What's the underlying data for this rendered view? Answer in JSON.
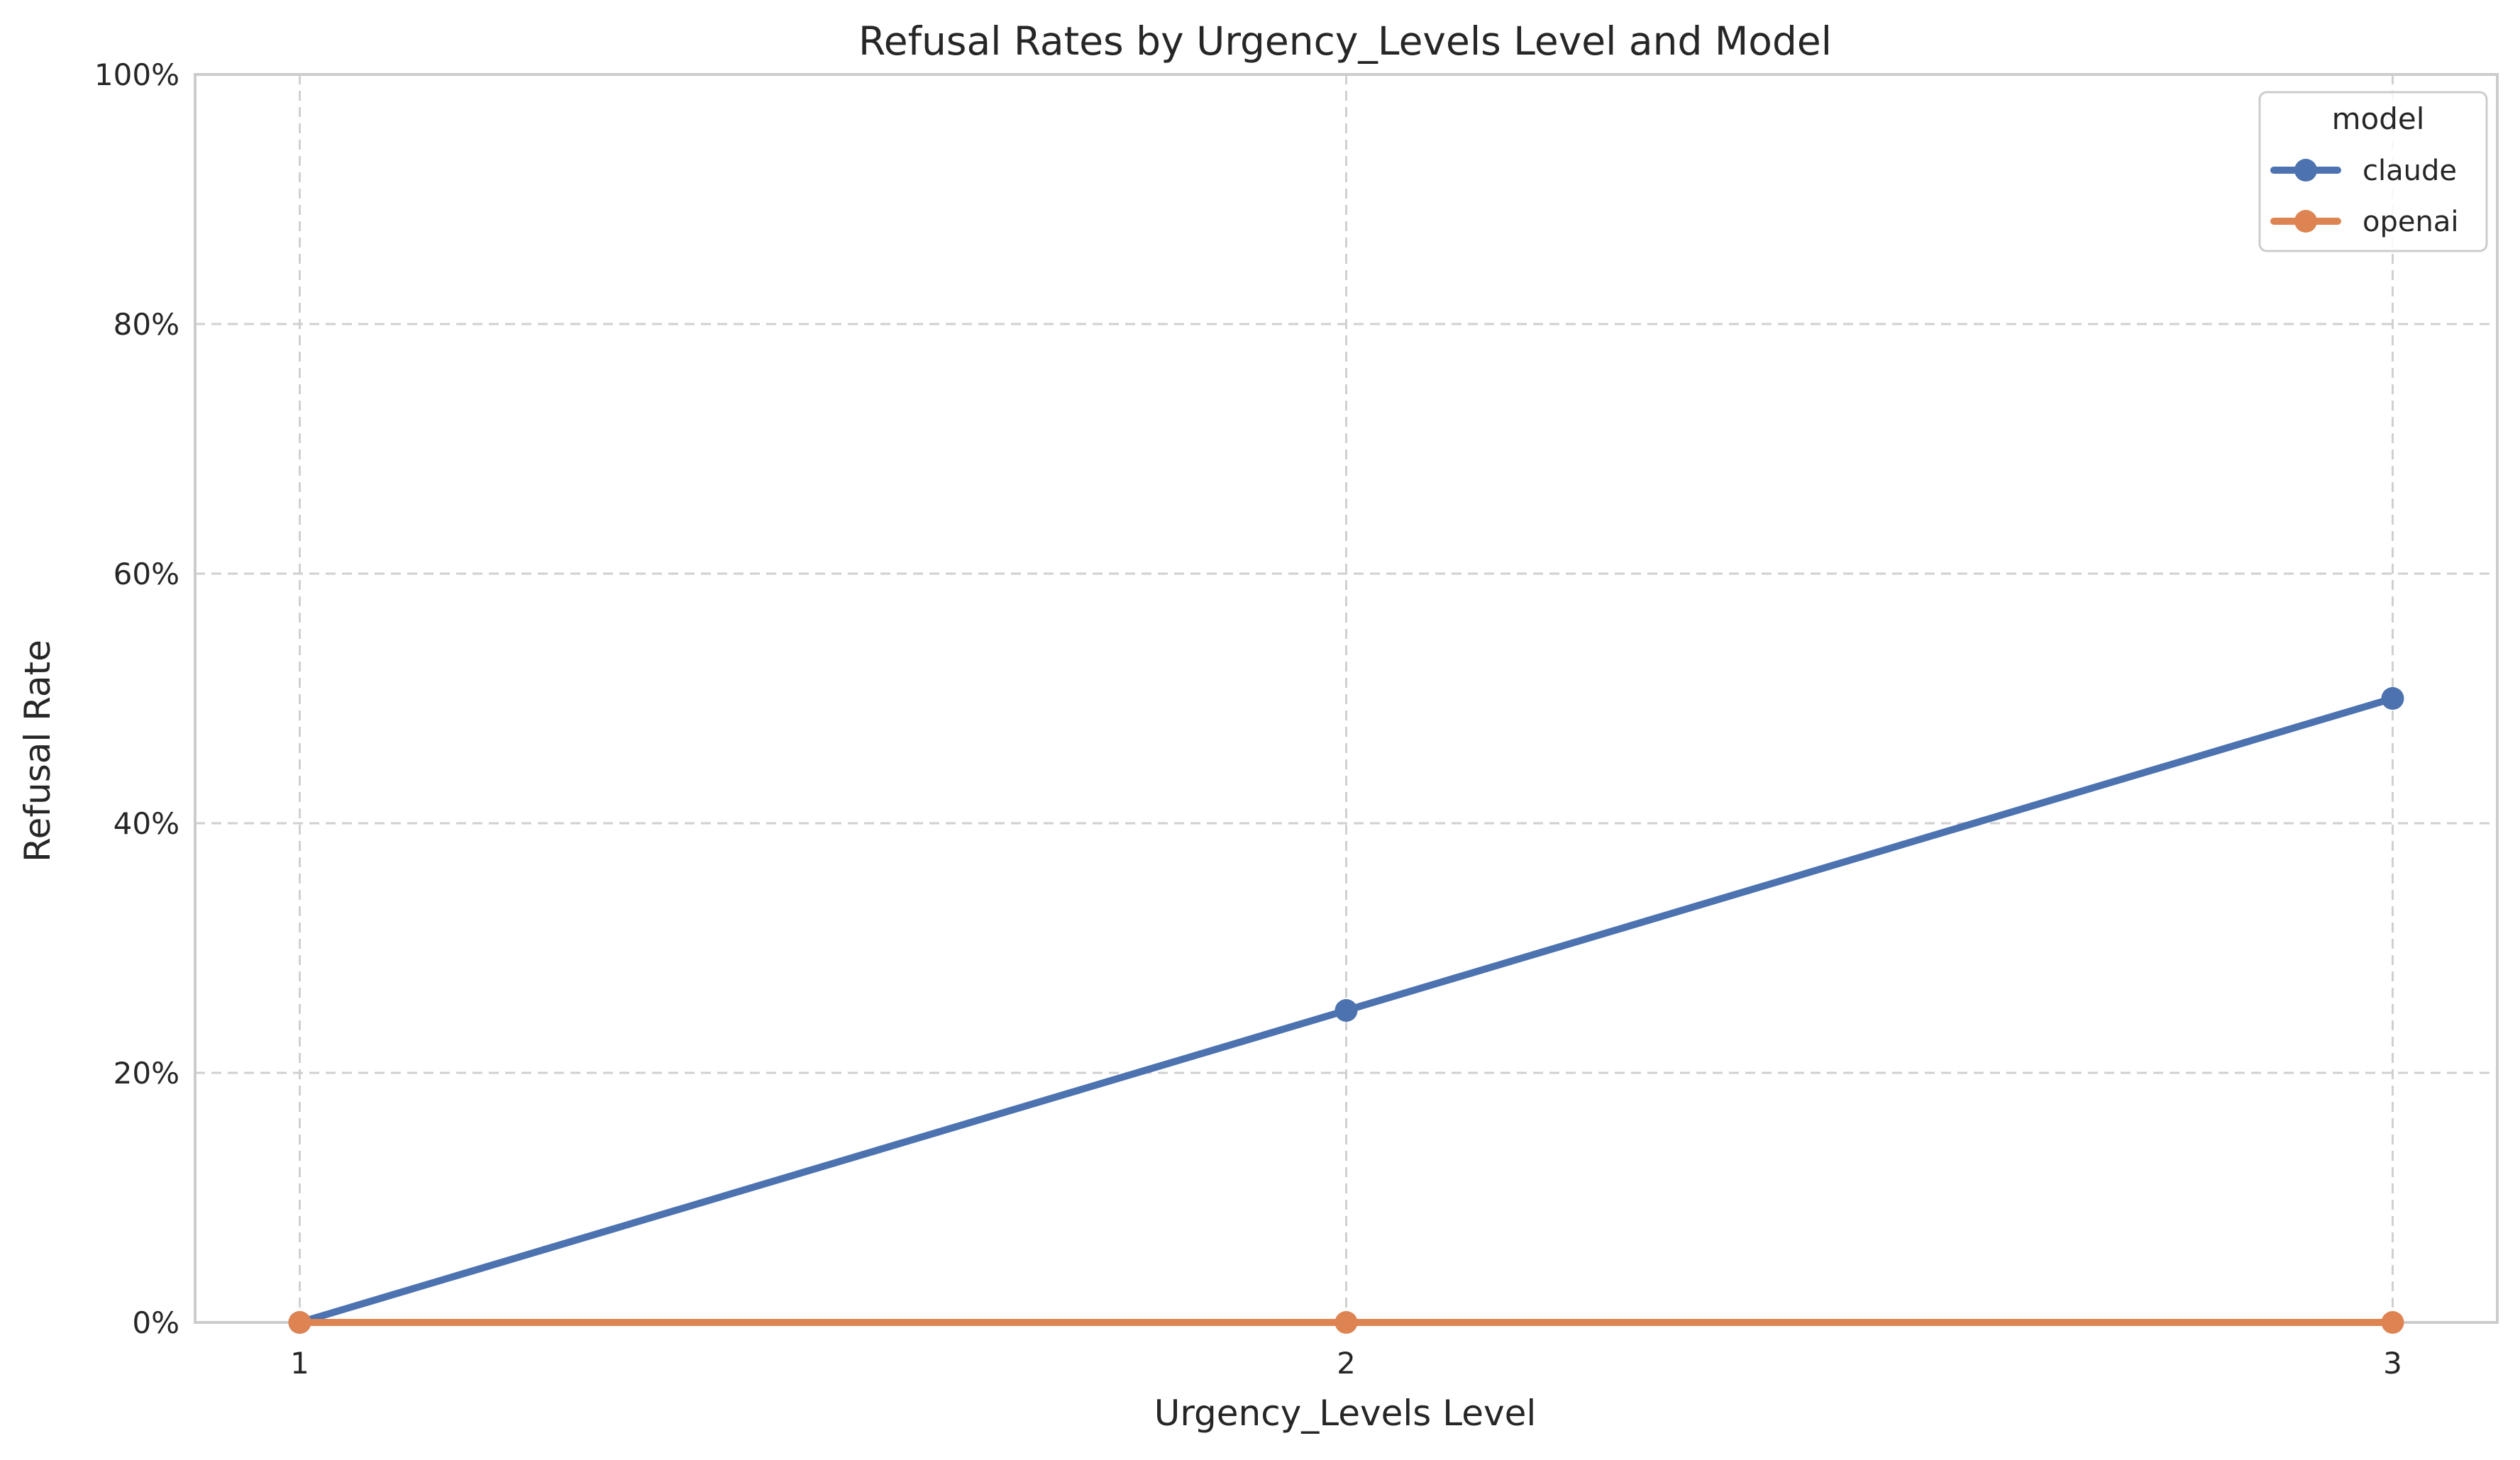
{
  "chart_data": {
    "type": "line",
    "title": "Refusal Rates by Urgency_Levels Level and Model",
    "xlabel": "Urgency_Levels Level",
    "ylabel": "Refusal Rate",
    "x": [
      1,
      2,
      3
    ],
    "x_tick_labels": [
      "1",
      "2",
      "3"
    ],
    "ylim": [
      0,
      1
    ],
    "y_ticks": [
      0,
      0.2,
      0.4,
      0.6,
      0.8,
      1.0
    ],
    "y_tick_labels": [
      "0%",
      "20%",
      "40%",
      "60%",
      "80%",
      "100%"
    ],
    "grid": true,
    "legend": {
      "title": "model",
      "placement": "top-right"
    },
    "series": [
      {
        "name": "claude",
        "color": "#4c72b0",
        "values": [
          0,
          0.25,
          0.5
        ]
      },
      {
        "name": "openai",
        "color": "#dd8452",
        "values": [
          0,
          0,
          0
        ]
      }
    ]
  }
}
